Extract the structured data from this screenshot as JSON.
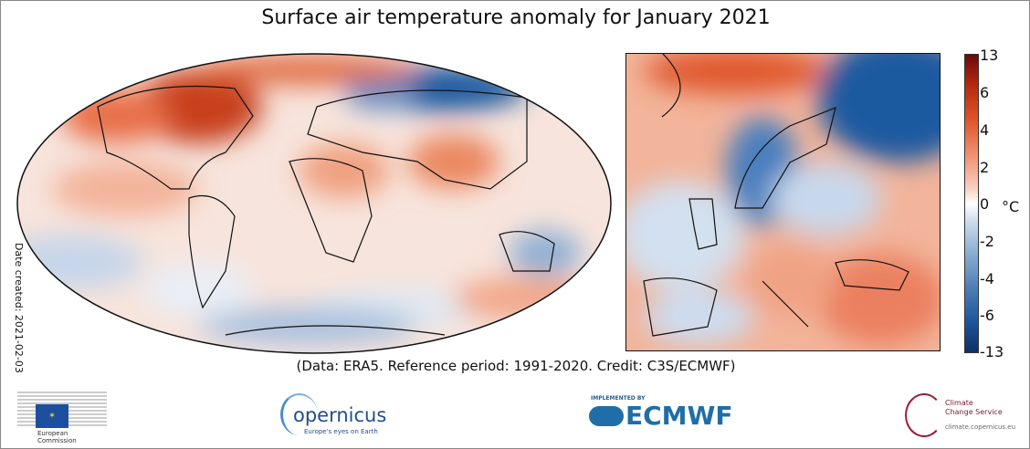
{
  "title": "Surface air temperature anomaly for January 2021",
  "date_created": "Date created: 2021-02-03",
  "caption": "(Data: ERA5.  Reference period: 1991-2020.  Credit: C3S/ECMWF)",
  "colorbar": {
    "unit": "°C",
    "ticks": [
      "13",
      "6",
      "4",
      "2",
      "0",
      "-2",
      "-4",
      "-6",
      "-13"
    ],
    "colors": {
      "max": "#6b0a0a",
      "zero": "#ffffff",
      "min": "#0c2f66"
    }
  },
  "logos": {
    "ec": {
      "line1": "European",
      "line2": "Commission"
    },
    "copernicus": {
      "name": "opernicus",
      "tagline": "Europe's eyes on Earth"
    },
    "ecmwf": {
      "implemented": "IMPLEMENTED BY",
      "name": "ECMWF"
    },
    "c3s": {
      "line1": "Climate",
      "line2": "Change Service",
      "url": "climate.copernicus.eu"
    }
  }
}
